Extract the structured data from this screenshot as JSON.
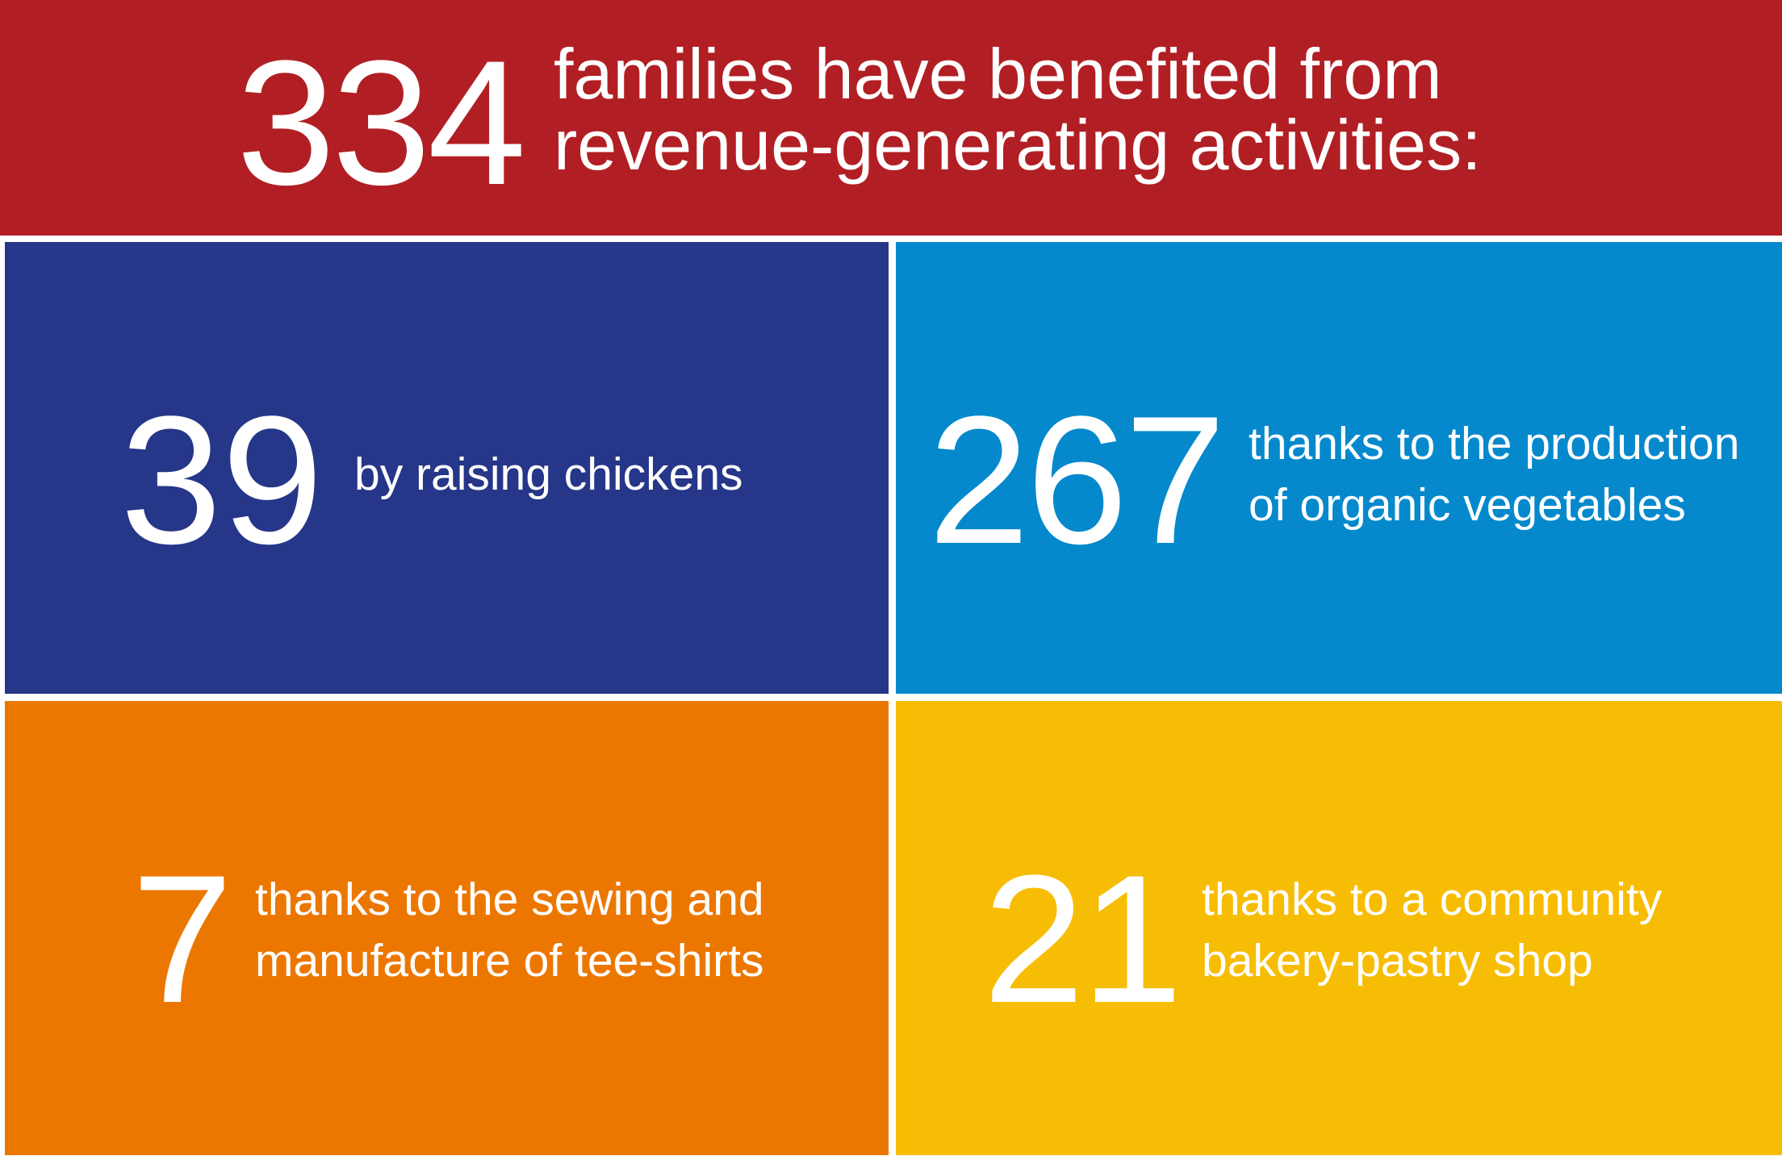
{
  "colors": {
    "header_bg": "#B11F24",
    "tile_chickens_bg": "#263688",
    "tile_vegetables_bg": "#0589CC",
    "tile_teeshirts_bg": "#EC7700",
    "tile_bakery_bg": "#F7BD04",
    "text": "#FFFFFF"
  },
  "header": {
    "number": "334",
    "line1": "families have benefited from",
    "line2": "revenue-generating activities:"
  },
  "tiles": [
    {
      "number": "39",
      "line1": "by raising chickens",
      "line2": ""
    },
    {
      "number": "267",
      "line1": "thanks to the production",
      "line2": "of organic vegetables"
    },
    {
      "number": "7",
      "line1": "thanks to the sewing and",
      "line2": "manufacture of tee-shirts"
    },
    {
      "number": "21",
      "line1": "thanks to a community",
      "line2": "bakery-pastry shop"
    }
  ]
}
